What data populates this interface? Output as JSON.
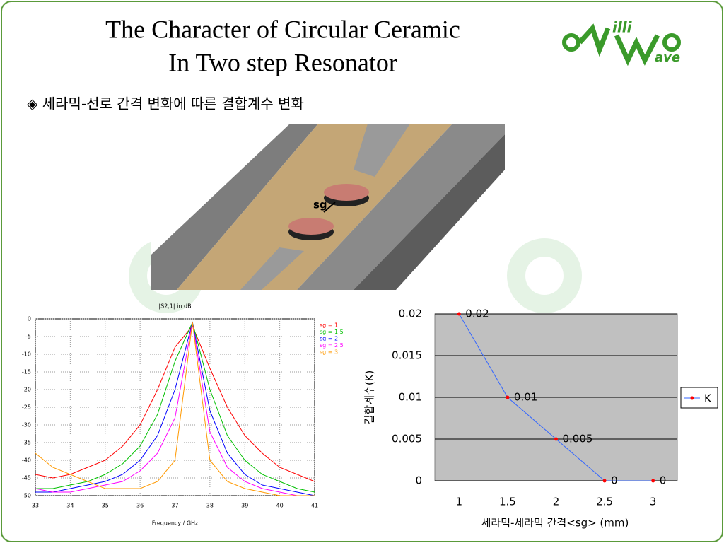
{
  "title": [
    "The Character of Circular Ceramic",
    "In Two step Resonator"
  ],
  "bullet": "◈ 세라믹-선로 간격 변화에 따른 결합계수 변화",
  "logo": {
    "top": "illi",
    "bottom": "ave"
  },
  "figure": {
    "label": "sg"
  },
  "chart_data": [
    {
      "type": "line",
      "title": "|S2,1| in dB",
      "x_label": "Frequency / GHz",
      "x": [
        33,
        33.5,
        34,
        34.5,
        35,
        35.5,
        36,
        36.5,
        37,
        37.5,
        38,
        38.5,
        39,
        39.5,
        40,
        40.5,
        41
      ],
      "xlim": [
        33,
        41
      ],
      "xticks": [
        33,
        34,
        35,
        36,
        37,
        38,
        39,
        40,
        41
      ],
      "ylim": [
        -50,
        0
      ],
      "yticks": [
        0,
        -5,
        -10,
        -15,
        -20,
        -25,
        -30,
        -35,
        -40,
        -45,
        -50
      ],
      "grid": true,
      "legend": "upper right",
      "series": [
        {
          "name": "sg = 1",
          "color": "#ff0000",
          "values": [
            -44,
            -45,
            -44,
            -42,
            -40,
            -36,
            -30,
            -20,
            -8,
            -2,
            -14,
            -25,
            -33,
            -38,
            -42,
            -44,
            -46
          ]
        },
        {
          "name": "sg = 1.5",
          "color": "#00c000",
          "values": [
            -48,
            -48,
            -47,
            -46,
            -44,
            -41,
            -36,
            -27,
            -12,
            -1,
            -20,
            -33,
            -40,
            -44,
            -46,
            -48,
            -49
          ]
        },
        {
          "name": "sg = 2",
          "color": "#0000ff",
          "values": [
            -49,
            -49,
            -48,
            -47,
            -46,
            -44,
            -40,
            -33,
            -20,
            -1,
            -26,
            -38,
            -44,
            -47,
            -48,
            -49,
            -50
          ]
        },
        {
          "name": "sg = 2.5",
          "color": "#ff00ff",
          "values": [
            -48,
            -49,
            -49,
            -48,
            -47,
            -46,
            -43,
            -38,
            -28,
            -1,
            -32,
            -42,
            -46,
            -48,
            -49,
            -50,
            -50
          ]
        },
        {
          "name": "sg = 3",
          "color": "#ff9900",
          "values": [
            -38,
            -42,
            -44,
            -46,
            -48,
            -48,
            -48,
            -46,
            -40,
            -1,
            -40,
            -46,
            -48,
            -49,
            -50,
            -50,
            -50
          ]
        }
      ]
    },
    {
      "type": "line",
      "x_label": "세라믹-세라믹 간격<sg>  (mm)",
      "y_label": "결합계수(K)",
      "categories": [
        "1",
        "1.5",
        "2",
        "2.5",
        "3"
      ],
      "ylim": [
        0,
        0.02
      ],
      "yticks": [
        0,
        0.005,
        0.01,
        0.015,
        0.02
      ],
      "grid": true,
      "legend": "right",
      "series": [
        {
          "name": "K",
          "color": "#3366ff",
          "marker_color": "#ff0000",
          "values": [
            0.02,
            0.01,
            0.005,
            0,
            0
          ]
        }
      ]
    }
  ]
}
